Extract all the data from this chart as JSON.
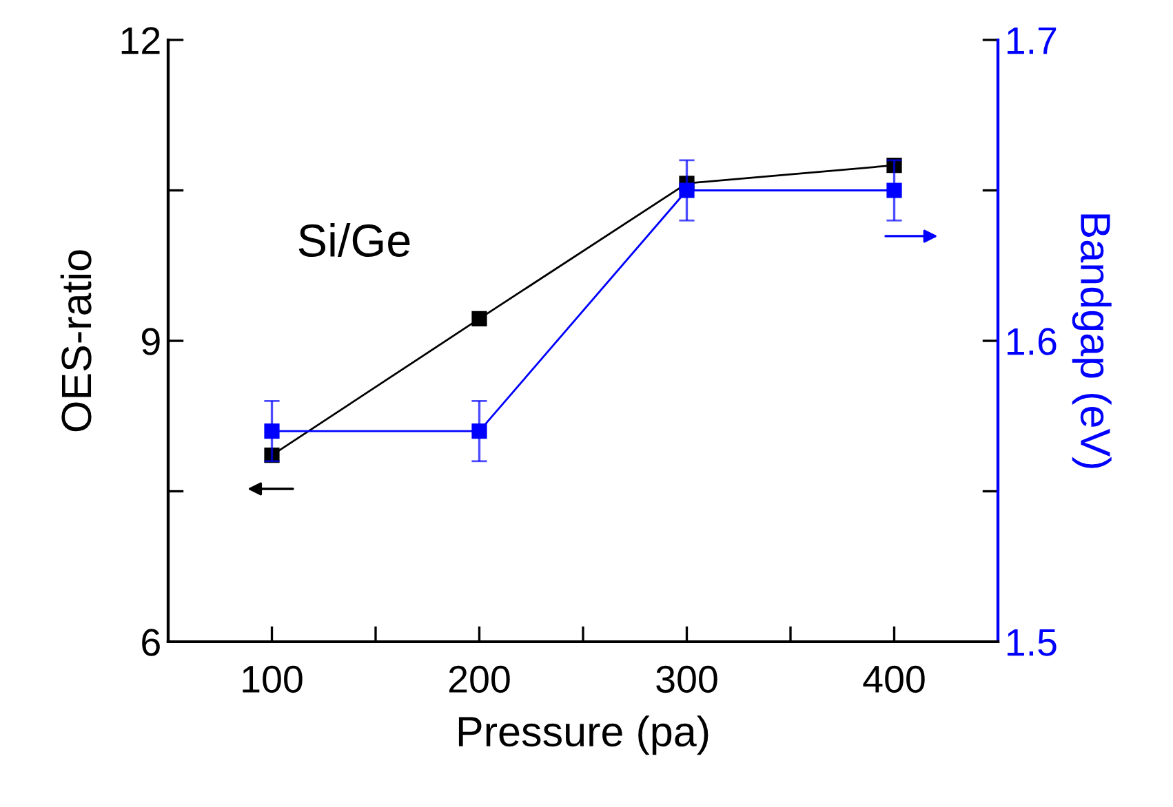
{
  "chart_data": {
    "type": "line",
    "xlabel": "Pressure (pa)",
    "ylabel": "OES-ratio",
    "y2label": "Bandgap (eV)",
    "x": [
      100,
      200,
      300,
      400
    ],
    "series": [
      {
        "color": "#000000",
        "values": [
          7.86,
          9.22,
          10.57,
          10.75
        ]
      },
      {
        "color": "#0000ff",
        "axis": "y2",
        "values": [
          1.57,
          1.57,
          1.65,
          1.65
        ],
        "errors": [
          0.01,
          0.01,
          0.01,
          0.01
        ]
      }
    ],
    "xlim": [
      50,
      450
    ],
    "xticks": [
      100,
      {
        "value": 150,
        "label": null
      },
      200,
      {
        "value": 250,
        "label": null
      },
      300,
      {
        "value": 350,
        "label": null
      },
      400
    ],
    "ylim": [
      6,
      12
    ],
    "yticks": [
      6,
      {
        "value": 7.5,
        "label": null
      },
      9,
      {
        "value": 10.5,
        "label": null
      },
      12
    ],
    "y2lim": [
      1.5,
      1.7
    ],
    "y2ticks": [
      1.5,
      {
        "value": 1.55,
        "label": null
      },
      1.6,
      {
        "value": 1.65,
        "label": null
      },
      1.7
    ],
    "annotations": [
      "Si/Ge"
    ],
    "marker": "square",
    "line_style": "solid",
    "grid": false,
    "legend": false
  }
}
